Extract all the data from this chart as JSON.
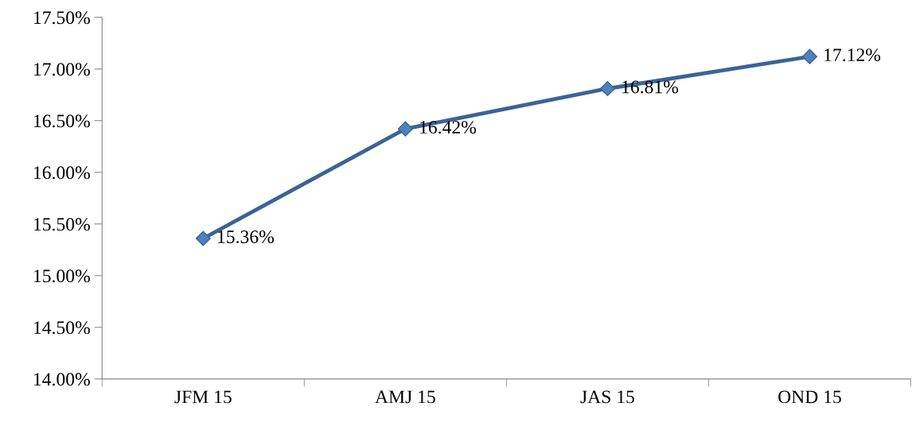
{
  "chart_data": {
    "type": "line",
    "categories": [
      "JFM 15",
      "AMJ 15",
      "JAS 15",
      "OND 15"
    ],
    "series": [
      {
        "color": "#3a6496",
        "values": [
          15.36,
          16.42,
          16.81,
          17.12
        ],
        "value_labels": [
          "15.36%",
          "16.42%",
          "16.81%",
          "17.12%"
        ]
      }
    ],
    "ylim": [
      14,
      17.5
    ],
    "yticks": [
      {
        "value": 14,
        "label": "14.00%"
      },
      {
        "value": 14.5,
        "label": "14.50%"
      },
      {
        "value": 15,
        "label": "15.00%"
      },
      {
        "value": 15.5,
        "label": "15.50%"
      },
      {
        "value": 16,
        "label": "16.00%"
      },
      {
        "value": 16.5,
        "label": "16.50%"
      },
      {
        "value": 17,
        "label": "17.00%"
      },
      {
        "value": 17.5,
        "label": "17.50%"
      }
    ],
    "grid": false,
    "legend": false,
    "marker": "diamond",
    "line_style": "solid"
  }
}
